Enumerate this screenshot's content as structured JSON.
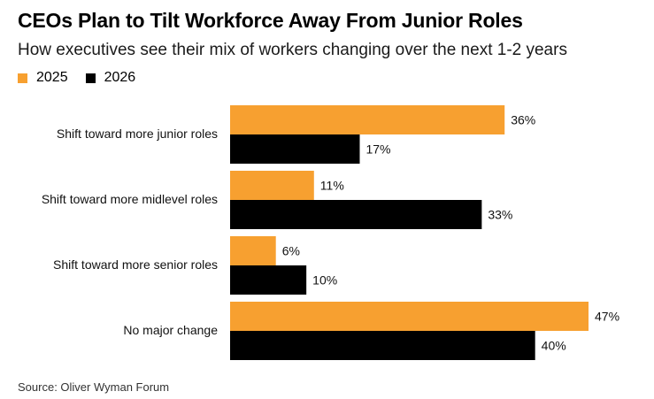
{
  "header": {
    "title": "CEOs Plan to Tilt Workforce Away From Junior Roles",
    "subtitle": "How executives see their mix of workers changing over the next 1-2 years"
  },
  "colors": {
    "series_2025": "#F7A030",
    "series_2026": "#000000"
  },
  "chart_data": {
    "type": "bar",
    "orientation": "horizontal",
    "categories": [
      "Shift toward more junior roles",
      "Shift toward more midlevel roles",
      "Shift toward more senior roles",
      "No major change"
    ],
    "series": [
      {
        "name": "2025",
        "values": [
          36,
          11,
          6,
          47
        ],
        "labels": [
          "36%",
          "11%",
          "6%",
          "47%"
        ]
      },
      {
        "name": "2026",
        "values": [
          17,
          33,
          10,
          40
        ],
        "labels": [
          "17%",
          "33%",
          "10%",
          "40%"
        ]
      }
    ],
    "unit": "%",
    "xlim": [
      0,
      47
    ],
    "grid": false,
    "legend_position": "top-left"
  },
  "footer": {
    "source": "Source: Oliver Wyman Forum"
  }
}
